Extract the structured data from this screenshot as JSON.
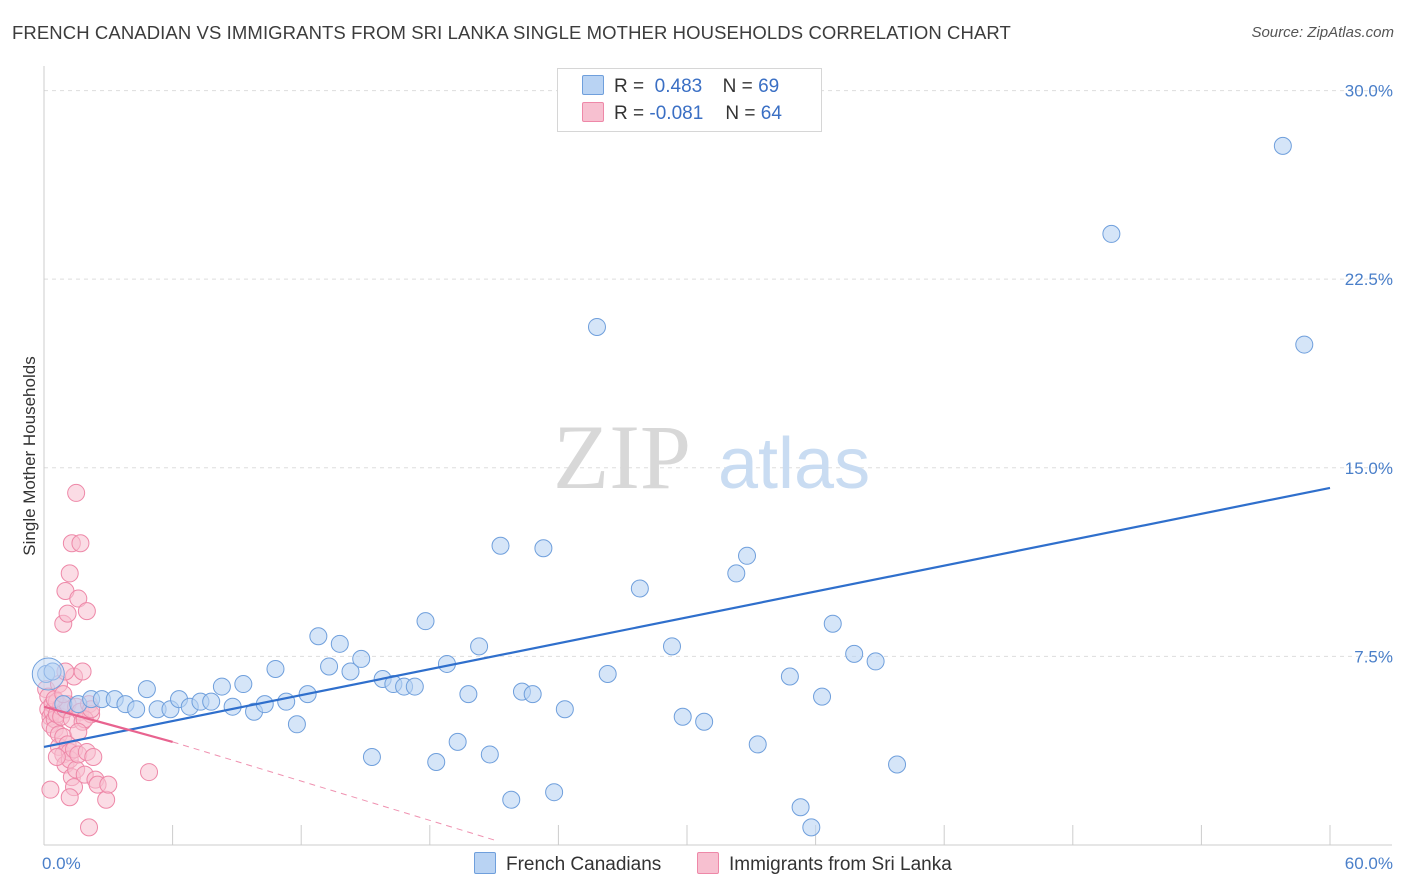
{
  "title": "FRENCH CANADIAN VS IMMIGRANTS FROM SRI LANKA SINGLE MOTHER HOUSEHOLDS CORRELATION CHART",
  "source": "Source: ZipAtlas.com",
  "watermark": {
    "zip": "ZIP",
    "atlas": "atlas"
  },
  "legend": {
    "series1": {
      "r_label": "R =",
      "r_value": "0.483",
      "n_label": "N =",
      "n_value": "69"
    },
    "series2": {
      "r_label": "R =",
      "r_value": "-0.081",
      "n_label": "N =",
      "n_value": "64"
    }
  },
  "bottom_legend": {
    "series1": "French Canadians",
    "series2": "Immigrants from Sri Lanka"
  },
  "colors": {
    "blue_fill": "#b9d3f3",
    "blue_stroke": "#6f9fdc",
    "blue_line": "#2f6fcc",
    "pink_fill": "#f7c0d0",
    "pink_stroke": "#ee88a8",
    "pink_line": "#e8638f",
    "grid": "#dddddd",
    "tick_text": "#4a7fc9"
  },
  "chart_data": {
    "type": "scatter",
    "title": "FRENCH CANADIAN VS IMMIGRANTS FROM SRI LANKA SINGLE MOTHER HOUSEHOLDS CORRELATION CHART",
    "xlabel": "",
    "ylabel": "Single Mother Households",
    "xlim": [
      0,
      60
    ],
    "ylim": [
      0,
      30.5
    ],
    "x_tick_labels": [
      "0.0%",
      "60.0%"
    ],
    "y_ticks": [
      7.5,
      15.0,
      22.5,
      30.0
    ],
    "y_tick_labels": [
      "7.5%",
      "15.0%",
      "22.5%",
      "30.0%"
    ],
    "grid": true,
    "legend_position": "top-center",
    "series": [
      {
        "name": "French Canadians",
        "R": 0.483,
        "N": 69,
        "trend": {
          "x": [
            0,
            60
          ],
          "y": [
            3.9,
            14.2
          ]
        },
        "points": [
          [
            0.1,
            6.8
          ],
          [
            0.4,
            6.9
          ],
          [
            0.9,
            5.6
          ],
          [
            1.6,
            5.6
          ],
          [
            2.2,
            5.8
          ],
          [
            2.7,
            5.8
          ],
          [
            3.3,
            5.8
          ],
          [
            3.8,
            5.6
          ],
          [
            4.3,
            5.4
          ],
          [
            4.8,
            6.2
          ],
          [
            5.3,
            5.4
          ],
          [
            5.9,
            5.4
          ],
          [
            6.3,
            5.8
          ],
          [
            6.8,
            5.5
          ],
          [
            7.3,
            5.7
          ],
          [
            7.8,
            5.7
          ],
          [
            8.3,
            6.3
          ],
          [
            8.8,
            5.5
          ],
          [
            9.3,
            6.4
          ],
          [
            9.8,
            5.3
          ],
          [
            10.3,
            5.6
          ],
          [
            10.8,
            7.0
          ],
          [
            11.3,
            5.7
          ],
          [
            11.8,
            4.8
          ],
          [
            12.3,
            6.0
          ],
          [
            12.8,
            8.3
          ],
          [
            13.3,
            7.1
          ],
          [
            13.8,
            8.0
          ],
          [
            14.3,
            6.9
          ],
          [
            14.8,
            7.4
          ],
          [
            15.3,
            3.5
          ],
          [
            15.8,
            6.6
          ],
          [
            16.3,
            6.4
          ],
          [
            16.8,
            6.3
          ],
          [
            17.3,
            6.3
          ],
          [
            17.8,
            8.9
          ],
          [
            18.3,
            3.3
          ],
          [
            18.8,
            7.2
          ],
          [
            19.3,
            4.1
          ],
          [
            19.8,
            6.0
          ],
          [
            20.3,
            7.9
          ],
          [
            20.8,
            3.6
          ],
          [
            21.3,
            11.9
          ],
          [
            21.8,
            1.8
          ],
          [
            22.3,
            6.1
          ],
          [
            22.8,
            6.0
          ],
          [
            23.3,
            11.8
          ],
          [
            23.8,
            2.1
          ],
          [
            24.3,
            5.4
          ],
          [
            25.8,
            20.6
          ],
          [
            26.3,
            6.8
          ],
          [
            27.8,
            10.2
          ],
          [
            29.3,
            7.9
          ],
          [
            29.8,
            5.1
          ],
          [
            30.8,
            4.9
          ],
          [
            32.3,
            10.8
          ],
          [
            32.8,
            11.5
          ],
          [
            33.3,
            4.0
          ],
          [
            34.8,
            6.7
          ],
          [
            35.3,
            1.5
          ],
          [
            35.8,
            0.7
          ],
          [
            36.3,
            5.9
          ],
          [
            36.8,
            8.8
          ],
          [
            37.8,
            7.6
          ],
          [
            38.8,
            7.3
          ],
          [
            39.8,
            3.2
          ],
          [
            49.8,
            24.3
          ],
          [
            57.8,
            27.8
          ],
          [
            58.8,
            19.9
          ]
        ]
      },
      {
        "name": "Immigrants from Sri Lanka",
        "R": -0.081,
        "N": 64,
        "trend": {
          "x": [
            0,
            6
          ],
          "y": [
            5.5,
            4.1
          ]
        },
        "trend_extended": {
          "x": [
            6,
            21
          ],
          "y": [
            4.1,
            0.2
          ]
        },
        "points": [
          [
            0.1,
            6.2
          ],
          [
            0.2,
            5.9
          ],
          [
            0.2,
            5.4
          ],
          [
            0.3,
            5.1
          ],
          [
            0.3,
            4.8
          ],
          [
            0.4,
            5.6
          ],
          [
            0.4,
            5.3
          ],
          [
            0.5,
            5.0
          ],
          [
            0.5,
            4.6
          ],
          [
            0.6,
            5.7
          ],
          [
            0.6,
            5.2
          ],
          [
            0.7,
            4.4
          ],
          [
            0.7,
            3.9
          ],
          [
            0.8,
            5.5
          ],
          [
            0.8,
            5.1
          ],
          [
            0.9,
            4.3
          ],
          [
            0.9,
            3.6
          ],
          [
            1.0,
            5.4
          ],
          [
            1.0,
            3.2
          ],
          [
            1.1,
            5.6
          ],
          [
            1.1,
            4.0
          ],
          [
            1.2,
            3.7
          ],
          [
            1.2,
            3.4
          ],
          [
            1.3,
            5.0
          ],
          [
            1.3,
            2.7
          ],
          [
            1.4,
            3.8
          ],
          [
            1.4,
            2.3
          ],
          [
            1.5,
            5.5
          ],
          [
            1.5,
            3.0
          ],
          [
            1.6,
            3.6
          ],
          [
            1.7,
            5.3
          ],
          [
            1.8,
            4.9
          ],
          [
            1.9,
            2.8
          ],
          [
            2.0,
            3.7
          ],
          [
            2.1,
            5.6
          ],
          [
            2.2,
            5.2
          ],
          [
            2.3,
            3.5
          ],
          [
            2.4,
            2.6
          ],
          [
            0.9,
            8.8
          ],
          [
            1.0,
            10.1
          ],
          [
            1.1,
            9.2
          ],
          [
            1.2,
            10.8
          ],
          [
            1.3,
            12.0
          ],
          [
            1.4,
            6.7
          ],
          [
            1.5,
            14.0
          ],
          [
            1.6,
            9.8
          ],
          [
            1.7,
            12.0
          ],
          [
            1.8,
            6.9
          ],
          [
            1.9,
            5.0
          ],
          [
            2.0,
            9.3
          ],
          [
            2.2,
            5.4
          ],
          [
            2.5,
            2.4
          ],
          [
            2.9,
            1.8
          ],
          [
            2.1,
            0.7
          ],
          [
            3.0,
            2.4
          ],
          [
            4.9,
            2.9
          ],
          [
            0.5,
            5.8
          ],
          [
            0.7,
            6.4
          ],
          [
            1.0,
            6.9
          ],
          [
            1.2,
            1.9
          ],
          [
            0.6,
            3.5
          ],
          [
            0.3,
            2.2
          ],
          [
            1.6,
            4.5
          ],
          [
            0.9,
            6.0
          ]
        ]
      }
    ]
  }
}
